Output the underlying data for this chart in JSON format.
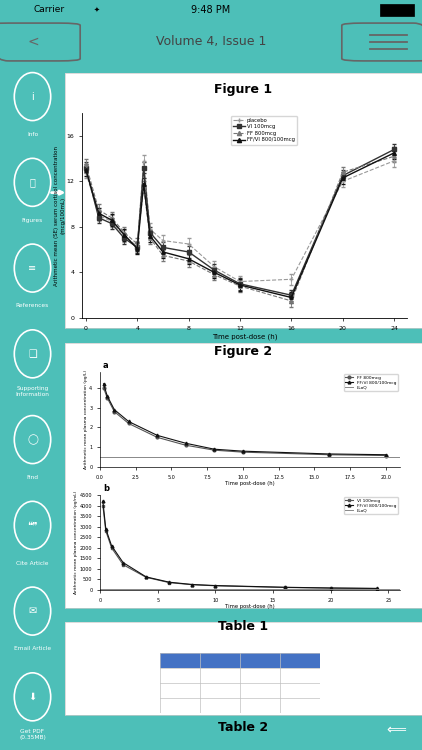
{
  "teal_color": "#4DBFB8",
  "status_bar_text": "9:48 PM",
  "nav_title": "Volume 4, Issue 1",
  "sidebar_bg_light": "#999999",
  "sidebar_bg_dark": "#555555",
  "sidebar_selected_idx": 1,
  "fig1_title": "Figure 1",
  "fig1_xlabel": "Time post-dose (h)",
  "fig1_ylabel": "Arithmetic mean (SE) serum cortisol concentration\n(mcg/100mL)",
  "fig1_xticks": [
    0,
    4,
    8,
    12,
    16,
    20,
    24
  ],
  "fig1_yticks": [
    0,
    4,
    8,
    12,
    16
  ],
  "fig1_legend": [
    "placebo",
    "VI 100mcg",
    "FF 800mcg",
    "FF/VI 800/100mcg"
  ],
  "fig1_time": [
    0,
    1,
    2,
    3,
    4,
    4.5,
    5,
    6,
    8,
    10,
    12,
    16,
    20,
    24
  ],
  "fig1_placebo": [
    12.8,
    9.0,
    8.5,
    7.2,
    6.3,
    13.8,
    7.8,
    6.8,
    6.5,
    4.5,
    3.2,
    3.4,
    12.0,
    13.8
  ],
  "fig1_vi100": [
    13.2,
    8.8,
    8.3,
    7.0,
    6.2,
    13.2,
    7.5,
    6.2,
    5.8,
    4.2,
    3.0,
    2.0,
    12.5,
    14.8
  ],
  "fig1_ff800": [
    13.5,
    9.5,
    8.8,
    7.5,
    6.5,
    11.5,
    7.0,
    5.5,
    5.0,
    3.8,
    2.8,
    1.5,
    12.8,
    14.2
  ],
  "fig1_ffvi": [
    13.0,
    9.2,
    8.6,
    7.3,
    6.1,
    11.8,
    7.2,
    5.8,
    5.2,
    4.0,
    2.9,
    1.8,
    12.3,
    14.5
  ],
  "fig1_err_val": 0.5,
  "fig2_title": "Figure 2",
  "fig2a_ylabel": "Arithmetic mean plasma concentration (pg/L)",
  "fig2b_ylabel": "Arithmetic mean plasma concentration (pg/mL)",
  "fig2a_xlabel": "Time post-dose (h)",
  "fig2b_xlabel": "Time post-dose (h)",
  "fig2a_legend": [
    "FF 800mcg",
    "FF/VI 800/100mcg",
    "LLoQ"
  ],
  "fig2b_legend": [
    "VI 100mcg",
    "FF/VI 800/100mcg",
    "LLoQ"
  ],
  "fig2a_time": [
    0.25,
    0.5,
    1,
    2,
    4,
    6,
    8,
    10,
    16,
    20
  ],
  "fig2a_ff800": [
    4.0,
    3.5,
    2.8,
    2.2,
    1.5,
    1.1,
    0.85,
    0.75,
    0.62,
    0.58
  ],
  "fig2a_ffvi": [
    4.2,
    3.6,
    2.9,
    2.3,
    1.6,
    1.2,
    0.9,
    0.8,
    0.66,
    0.62
  ],
  "fig2a_lloq": 0.5,
  "fig2b_time": [
    0.25,
    0.5,
    1,
    2,
    4,
    6,
    8,
    10,
    16,
    20,
    24
  ],
  "fig2b_vi100": [
    4000,
    2800,
    2000,
    1200,
    600,
    350,
    250,
    200,
    120,
    90,
    70
  ],
  "fig2b_ffvi": [
    4200,
    2900,
    2100,
    1300,
    620,
    370,
    260,
    210,
    130,
    95,
    75
  ],
  "fig2b_lloq": 50,
  "table1_title": "Table 1",
  "table2_title": "Table 2",
  "table_header_color": "#4472C4",
  "table_grid_color": "#C0C0C0"
}
